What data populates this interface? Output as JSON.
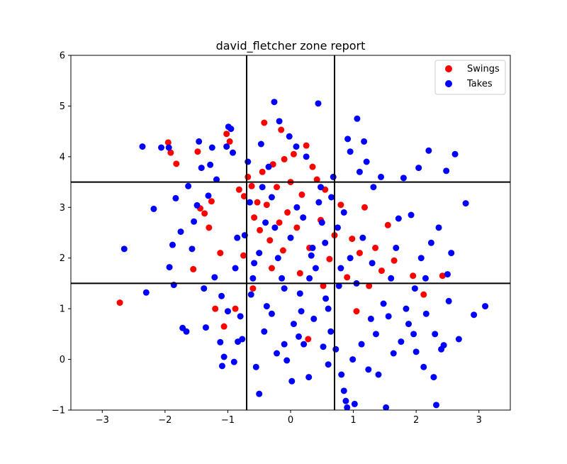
{
  "chart_data": {
    "type": "scatter",
    "title": "david_fletcher zone report",
    "xlabel": "",
    "ylabel": "",
    "xlim": [
      -3.5,
      3.5
    ],
    "ylim": [
      -1,
      6
    ],
    "xticks": [
      -3,
      -2,
      -1,
      0,
      1,
      2,
      3
    ],
    "yticks": [
      -1,
      0,
      1,
      2,
      3,
      4,
      5,
      6
    ],
    "xtick_labels": [
      "−3",
      "−2",
      "−1",
      "0",
      "1",
      "2",
      "3"
    ],
    "ytick_labels": [
      "−1",
      "0",
      "1",
      "2",
      "3",
      "4",
      "5",
      "6"
    ],
    "grid": false,
    "legend_position": "top-right",
    "zone_lines": {
      "vertical": [
        -0.7,
        0.7
      ],
      "horizontal": [
        1.5,
        3.5
      ]
    },
    "series": [
      {
        "name": "Swings",
        "color": "#ff0000",
        "points": [
          [
            -2.72,
            1.12
          ],
          [
            -1.95,
            4.28
          ],
          [
            -1.91,
            4.08
          ],
          [
            -1.82,
            3.86
          ],
          [
            -1.48,
            4.1
          ],
          [
            -1.44,
            2.98
          ],
          [
            -1.37,
            2.88
          ],
          [
            -1.26,
            3.12
          ],
          [
            -1.2,
            1.0
          ],
          [
            -1.12,
            2.1
          ],
          [
            -1.06,
            0.65
          ],
          [
            -1.02,
            4.45
          ],
          [
            -0.97,
            4.3
          ],
          [
            -0.88,
            1.0
          ],
          [
            -0.82,
            3.35
          ],
          [
            -0.74,
            3.22
          ],
          [
            -0.68,
            3.6
          ],
          [
            -0.62,
            3.42
          ],
          [
            -0.58,
            2.8
          ],
          [
            -0.53,
            3.1
          ],
          [
            -0.49,
            2.55
          ],
          [
            -0.45,
            3.7
          ],
          [
            -0.42,
            4.67
          ],
          [
            -0.38,
            3.05
          ],
          [
            -0.33,
            2.35
          ],
          [
            -0.28,
            3.85
          ],
          [
            -0.22,
            3.4
          ],
          [
            -0.18,
            2.7
          ],
          [
            -0.15,
            4.53
          ],
          [
            -0.1,
            3.95
          ],
          [
            -0.05,
            2.9
          ],
          [
            0.0,
            3.5
          ],
          [
            0.05,
            4.05
          ],
          [
            0.1,
            2.6
          ],
          [
            0.18,
            3.25
          ],
          [
            0.25,
            4.22
          ],
          [
            0.3,
            2.2
          ],
          [
            0.35,
            3.8
          ],
          [
            0.42,
            3.55
          ],
          [
            0.48,
            2.75
          ],
          [
            0.55,
            3.35
          ],
          [
            0.62,
            1.98
          ],
          [
            0.7,
            2.45
          ],
          [
            0.8,
            3.05
          ],
          [
            0.9,
            1.62
          ],
          [
            0.98,
            2.38
          ],
          [
            1.05,
            0.95
          ],
          [
            1.1,
            2.1
          ],
          [
            1.18,
            3.0
          ],
          [
            1.25,
            1.45
          ],
          [
            1.35,
            2.2
          ],
          [
            1.45,
            1.75
          ],
          [
            1.55,
            2.65
          ],
          [
            1.65,
            1.95
          ],
          [
            1.95,
            1.65
          ],
          [
            2.12,
            1.28
          ],
          [
            2.42,
            1.65
          ],
          [
            0.28,
            0.4
          ],
          [
            -0.6,
            1.4
          ],
          [
            -0.3,
            1.8
          ],
          [
            0.15,
            1.7
          ],
          [
            -0.75,
            2.05
          ],
          [
            -1.3,
            2.6
          ],
          [
            -1.55,
            1.78
          ],
          [
            0.52,
            1.45
          ],
          [
            -0.12,
            2.15
          ]
        ]
      },
      {
        "name": "Takes",
        "color": "#0000ff",
        "points": [
          [
            -2.65,
            2.18
          ],
          [
            -2.36,
            4.2
          ],
          [
            -2.3,
            1.32
          ],
          [
            -2.18,
            2.97
          ],
          [
            -2.06,
            4.18
          ],
          [
            -1.94,
            4.18
          ],
          [
            -1.93,
            1.82
          ],
          [
            -1.88,
            2.26
          ],
          [
            -1.86,
            1.47
          ],
          [
            -1.83,
            3.18
          ],
          [
            -1.75,
            2.52
          ],
          [
            -1.72,
            0.62
          ],
          [
            -1.66,
            0.55
          ],
          [
            -1.63,
            3.42
          ],
          [
            -1.57,
            2.18
          ],
          [
            -1.54,
            2.72
          ],
          [
            -1.49,
            3.04
          ],
          [
            -1.46,
            4.3
          ],
          [
            -1.42,
            3.78
          ],
          [
            -1.38,
            1.4
          ],
          [
            -1.35,
            0.63
          ],
          [
            -1.31,
            3.23
          ],
          [
            -1.28,
            3.84
          ],
          [
            -1.25,
            4.18
          ],
          [
            -1.21,
            1.62
          ],
          [
            -1.18,
            3.55
          ],
          [
            -1.12,
            0.34
          ],
          [
            -1.09,
            -0.13
          ],
          [
            -1.06,
            0.05
          ],
          [
            -1.02,
            4.2
          ],
          [
            -0.99,
            4.59
          ],
          [
            -0.95,
            4.55
          ],
          [
            -0.92,
            4.08
          ],
          [
            -0.88,
            1.8
          ],
          [
            -0.84,
            0.35
          ],
          [
            -0.8,
            0.85
          ],
          [
            -0.77,
            0.4
          ],
          [
            -0.73,
            2.45
          ],
          [
            -0.68,
            3.9
          ],
          [
            -0.63,
            1.28
          ],
          [
            -0.58,
            1.9
          ],
          [
            -0.55,
            -0.15
          ],
          [
            -0.5,
            -0.68
          ],
          [
            -0.47,
            4.25
          ],
          [
            -0.42,
            0.55
          ],
          [
            -0.38,
            1.05
          ],
          [
            -0.35,
            3.8
          ],
          [
            -0.3,
            0.9
          ],
          [
            -0.26,
            5.08
          ],
          [
            -0.22,
            0.12
          ],
          [
            -0.18,
            4.7
          ],
          [
            -0.14,
            1.6
          ],
          [
            -0.1,
            0.3
          ],
          [
            -0.06,
            -0.02
          ],
          [
            -0.02,
            4.4
          ],
          [
            0.02,
            -0.43
          ],
          [
            0.05,
            0.7
          ],
          [
            0.09,
            4.2
          ],
          [
            0.13,
            0.45
          ],
          [
            0.17,
            0.95
          ],
          [
            0.21,
            0.3
          ],
          [
            0.25,
            4.0
          ],
          [
            0.29,
            -0.35
          ],
          [
            0.33,
            2.05
          ],
          [
            0.37,
            0.8
          ],
          [
            0.44,
            5.05
          ],
          [
            0.48,
            3.4
          ],
          [
            0.52,
            0.25
          ],
          [
            0.56,
            1.2
          ],
          [
            0.6,
            -0.1
          ],
          [
            0.64,
            0.55
          ],
          [
            0.68,
            3.6
          ],
          [
            0.72,
            0.2
          ],
          [
            0.77,
            1.45
          ],
          [
            0.81,
            -0.3
          ],
          [
            0.85,
            -0.62
          ],
          [
            0.88,
            -0.82
          ],
          [
            0.91,
            4.35
          ],
          [
            0.95,
            4.1
          ],
          [
            0.99,
            0.0
          ],
          [
            1.02,
            -0.88
          ],
          [
            1.06,
            4.75
          ],
          [
            1.1,
            3.7
          ],
          [
            1.13,
            0.3
          ],
          [
            1.17,
            4.3
          ],
          [
            1.21,
            3.9
          ],
          [
            1.24,
            -0.2
          ],
          [
            1.28,
            0.8
          ],
          [
            1.32,
            3.4
          ],
          [
            1.36,
            0.5
          ],
          [
            1.4,
            -0.3
          ],
          [
            1.44,
            3.6
          ],
          [
            1.48,
            1.1
          ],
          [
            1.52,
            -0.95
          ],
          [
            1.56,
            0.85
          ],
          [
            1.6,
            1.6
          ],
          [
            1.64,
            0.12
          ],
          [
            1.68,
            2.2
          ],
          [
            1.72,
            2.78
          ],
          [
            1.76,
            0.35
          ],
          [
            1.8,
            3.58
          ],
          [
            1.84,
            1.0
          ],
          [
            1.88,
            0.7
          ],
          [
            1.92,
            2.85
          ],
          [
            1.96,
            0.5
          ],
          [
            2.0,
            0.15
          ],
          [
            2.04,
            3.78
          ],
          [
            2.08,
            2.0
          ],
          [
            2.12,
            -0.15
          ],
          [
            2.16,
            0.9
          ],
          [
            2.2,
            4.12
          ],
          [
            2.24,
            2.3
          ],
          [
            2.28,
            -0.35
          ],
          [
            2.32,
            -0.9
          ],
          [
            2.36,
            2.6
          ],
          [
            2.4,
            0.2
          ],
          [
            2.44,
            0.28
          ],
          [
            2.48,
            3.72
          ],
          [
            2.52,
            1.15
          ],
          [
            2.56,
            2.1
          ],
          [
            2.62,
            4.05
          ],
          [
            2.68,
            0.4
          ],
          [
            2.79,
            3.08
          ],
          [
            2.92,
            0.88
          ],
          [
            3.1,
            1.05
          ],
          [
            2.5,
            1.68
          ],
          [
            2.3,
            0.5
          ],
          [
            2.15,
            1.6
          ],
          [
            1.98,
            1.4
          ],
          [
            0.9,
            -0.95
          ],
          [
            0.6,
            1.0
          ],
          [
            -0.9,
            -0.05
          ],
          [
            -1.0,
            0.95
          ],
          [
            -1.1,
            1.25
          ],
          [
            -0.65,
            3.1
          ],
          [
            -0.4,
            2.7
          ],
          [
            -0.2,
            2.0
          ],
          [
            0.0,
            2.4
          ],
          [
            0.2,
            2.8
          ],
          [
            0.4,
            1.8
          ],
          [
            0.55,
            2.3
          ],
          [
            0.75,
            2.6
          ],
          [
            0.95,
            2.0
          ],
          [
            1.15,
            2.4
          ],
          [
            -0.5,
            2.1
          ],
          [
            -0.3,
            3.2
          ],
          [
            0.1,
            3.0
          ],
          [
            0.3,
            1.6
          ],
          [
            0.5,
            2.7
          ],
          [
            0.8,
            1.8
          ],
          [
            -0.1,
            1.4
          ],
          [
            0.65,
            3.2
          ],
          [
            1.3,
            1.9
          ],
          [
            -0.85,
            2.4
          ],
          [
            -0.6,
            1.6
          ],
          [
            0.35,
            2.2
          ],
          [
            0.15,
            1.3
          ],
          [
            -0.25,
            2.6
          ],
          [
            0.85,
            2.9
          ],
          [
            1.05,
            1.5
          ],
          [
            -0.45,
            3.4
          ],
          [
            0.45,
            3.1
          ]
        ]
      }
    ]
  }
}
